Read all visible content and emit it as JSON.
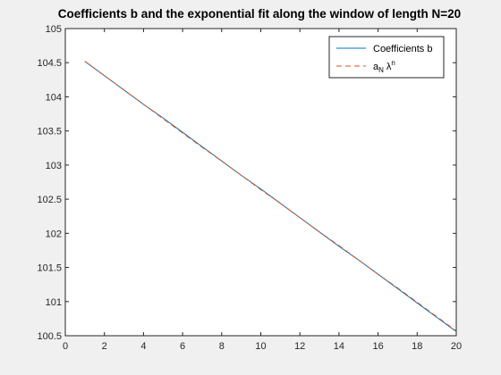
{
  "chart_data": {
    "type": "line",
    "title": "Coefficients b and the exponential fit along the window of length N=20",
    "xlabel": "",
    "ylabel": "",
    "xlim": [
      0,
      20
    ],
    "ylim": [
      100.5,
      105
    ],
    "xticks": [
      0,
      2,
      4,
      6,
      8,
      10,
      12,
      14,
      16,
      18,
      20
    ],
    "yticks": [
      100.5,
      101,
      101.5,
      102,
      102.5,
      103,
      103.5,
      104,
      104.5,
      105
    ],
    "grid": false,
    "legend_position": "top-right",
    "x": [
      1,
      2,
      3,
      4,
      5,
      6,
      7,
      8,
      9,
      10,
      11,
      12,
      13,
      14,
      15,
      16,
      17,
      18,
      19,
      20
    ],
    "series": [
      {
        "name": "Coefficients b",
        "color": "#0072bd",
        "style": "solid",
        "values": [
          104.52,
          104.31,
          104.1,
          103.89,
          103.69,
          103.48,
          103.27,
          103.06,
          102.85,
          102.65,
          102.44,
          102.23,
          102.02,
          101.81,
          101.61,
          101.4,
          101.19,
          100.98,
          100.77,
          100.56
        ]
      },
      {
        "name_main": "a",
        "name_sub": "N",
        "name_greek": "λ",
        "name_sup": "n",
        "color": "#d95319",
        "style": "dashed",
        "values": [
          104.52,
          104.31,
          104.1,
          103.89,
          103.68,
          103.47,
          103.26,
          103.06,
          102.85,
          102.64,
          102.44,
          102.23,
          102.02,
          101.82,
          101.61,
          101.4,
          101.2,
          100.99,
          100.78,
          100.57
        ]
      }
    ]
  }
}
